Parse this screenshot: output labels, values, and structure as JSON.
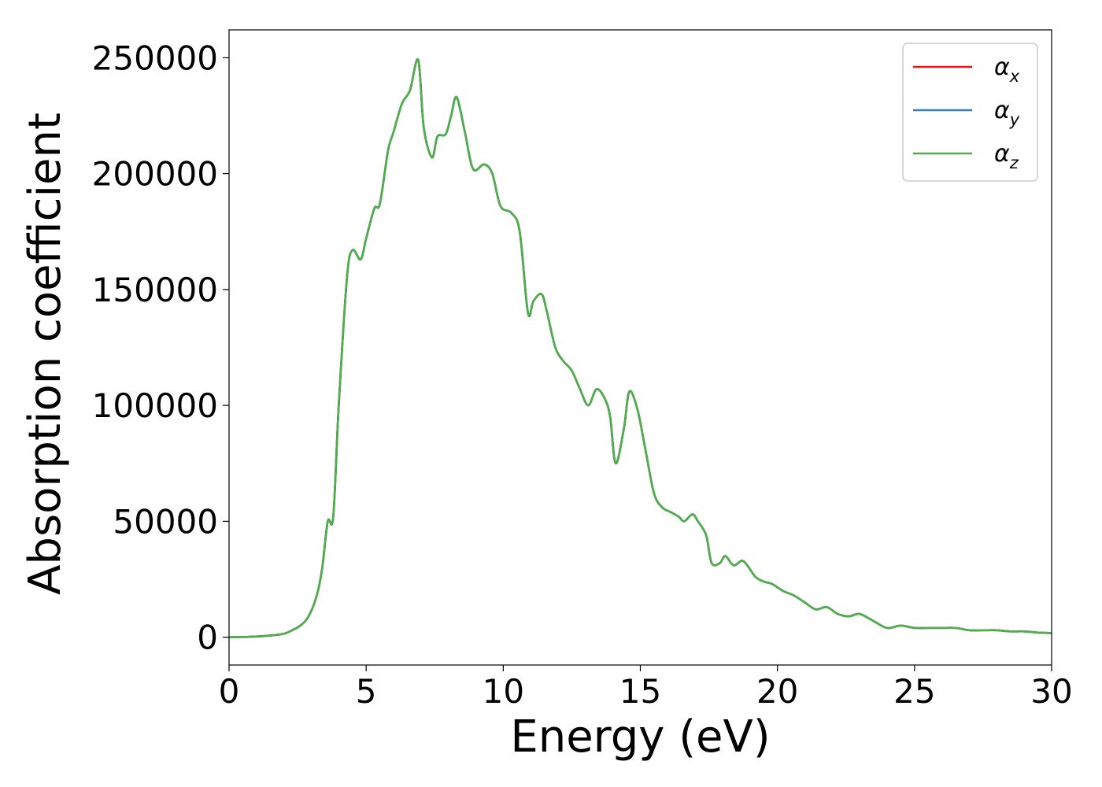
{
  "chart_data": {
    "type": "line",
    "title": "",
    "xlabel": "Energy (eV)",
    "ylabel": "Absorption coefficient",
    "xlim": [
      0,
      30
    ],
    "ylim": [
      -12000,
      262000
    ],
    "xticks": [
      0,
      5,
      10,
      15,
      20,
      25,
      30
    ],
    "xtick_labels": [
      "0",
      "5",
      "10",
      "15",
      "20",
      "25",
      "30"
    ],
    "yticks": [
      0,
      50000,
      100000,
      150000,
      200000,
      250000
    ],
    "ytick_labels": [
      "0",
      "50000",
      "100000",
      "150000",
      "200000",
      "250000"
    ],
    "grid": false,
    "legend_position": "top-right",
    "x": [
      0,
      0.5,
      1,
      1.5,
      2,
      2.3,
      2.6,
      2.9,
      3.2,
      3.4,
      3.6,
      3.8,
      4,
      4.3,
      4.5,
      4.8,
      5,
      5.3,
      5.5,
      5.8,
      6,
      6.3,
      6.6,
      6.9,
      7.1,
      7.4,
      7.6,
      7.9,
      8.1,
      8.3,
      8.6,
      8.9,
      9.3,
      9.6,
      9.9,
      10.3,
      10.6,
      10.9,
      11.1,
      11.4,
      11.6,
      11.9,
      12.2,
      12.5,
      12.8,
      13.1,
      13.4,
      13.7,
      13.9,
      14.1,
      14.4,
      14.6,
      14.9,
      15.2,
      15.5,
      15.8,
      16.1,
      16.4,
      16.6,
      16.9,
      17.1,
      17.4,
      17.6,
      17.9,
      18.1,
      18.4,
      18.7,
      18.9,
      19.2,
      19.5,
      19.8,
      20.2,
      20.6,
      21,
      21.4,
      21.8,
      22.2,
      22.6,
      23,
      23.5,
      24,
      24.5,
      25,
      25.5,
      26,
      26.5,
      27,
      27.5,
      28,
      28.5,
      29,
      29.5,
      30
    ],
    "series": [
      {
        "name": "αx",
        "color": "#e41a1c",
        "values": [
          0,
          100,
          300,
          700,
          1500,
          3000,
          5000,
          9000,
          18000,
          30000,
          50000,
          52000,
          100000,
          155000,
          167000,
          163000,
          172000,
          185000,
          187000,
          210000,
          218000,
          230000,
          236000,
          249000,
          220000,
          207000,
          216000,
          217000,
          225000,
          233000,
          218000,
          202000,
          204000,
          200000,
          186000,
          183000,
          175000,
          140000,
          145000,
          148000,
          140000,
          125000,
          119000,
          115000,
          107000,
          100000,
          107000,
          103000,
          95000,
          75000,
          90000,
          106000,
          98000,
          80000,
          62000,
          56000,
          54000,
          52000,
          50000,
          53000,
          50000,
          44000,
          32000,
          32000,
          35000,
          31000,
          33000,
          31000,
          26000,
          24000,
          23000,
          20000,
          18000,
          15000,
          12000,
          13000,
          10000,
          9000,
          10000,
          7000,
          4000,
          5000,
          4000,
          4000,
          4000,
          4000,
          3000,
          3000,
          3000,
          2500,
          2500,
          2000,
          1800
        ]
      },
      {
        "name": "αy",
        "color": "#377eb8",
        "values": [
          0,
          100,
          300,
          700,
          1500,
          3000,
          5000,
          9000,
          18000,
          30000,
          50000,
          52000,
          100000,
          155000,
          167000,
          163000,
          172000,
          185000,
          187000,
          210000,
          218000,
          230000,
          236000,
          249000,
          220000,
          207000,
          216000,
          217000,
          225000,
          233000,
          218000,
          202000,
          204000,
          200000,
          186000,
          183000,
          175000,
          140000,
          145000,
          148000,
          140000,
          125000,
          119000,
          115000,
          107000,
          100000,
          107000,
          103000,
          95000,
          75000,
          90000,
          106000,
          98000,
          80000,
          62000,
          56000,
          54000,
          52000,
          50000,
          53000,
          50000,
          44000,
          32000,
          32000,
          35000,
          31000,
          33000,
          31000,
          26000,
          24000,
          23000,
          20000,
          18000,
          15000,
          12000,
          13000,
          10000,
          9000,
          10000,
          7000,
          4000,
          5000,
          4000,
          4000,
          4000,
          4000,
          3000,
          3000,
          3000,
          2500,
          2500,
          2000,
          1800
        ]
      },
      {
        "name": "αz",
        "color": "#4daf4a",
        "values": [
          0,
          100,
          300,
          700,
          1500,
          3000,
          5000,
          9000,
          18000,
          30000,
          50000,
          52000,
          100000,
          155000,
          167000,
          163000,
          172000,
          185000,
          187000,
          210000,
          218000,
          230000,
          236000,
          249000,
          220000,
          207000,
          216000,
          217000,
          225000,
          233000,
          218000,
          202000,
          204000,
          200000,
          186000,
          183000,
          175000,
          140000,
          145000,
          148000,
          140000,
          125000,
          119000,
          115000,
          107000,
          100000,
          107000,
          103000,
          95000,
          75000,
          90000,
          106000,
          98000,
          80000,
          62000,
          56000,
          54000,
          52000,
          50000,
          53000,
          50000,
          44000,
          32000,
          32000,
          35000,
          31000,
          33000,
          31000,
          26000,
          24000,
          23000,
          20000,
          18000,
          15000,
          12000,
          13000,
          10000,
          9000,
          10000,
          7000,
          4000,
          5000,
          4000,
          4000,
          4000,
          4000,
          3000,
          3000,
          3000,
          2500,
          2500,
          2000,
          1800
        ]
      }
    ],
    "legend": [
      {
        "symbol": "α",
        "subscript": "x",
        "color": "#e41a1c"
      },
      {
        "symbol": "α",
        "subscript": "y",
        "color": "#377eb8"
      },
      {
        "symbol": "α",
        "subscript": "z",
        "color": "#4daf4a"
      }
    ]
  }
}
